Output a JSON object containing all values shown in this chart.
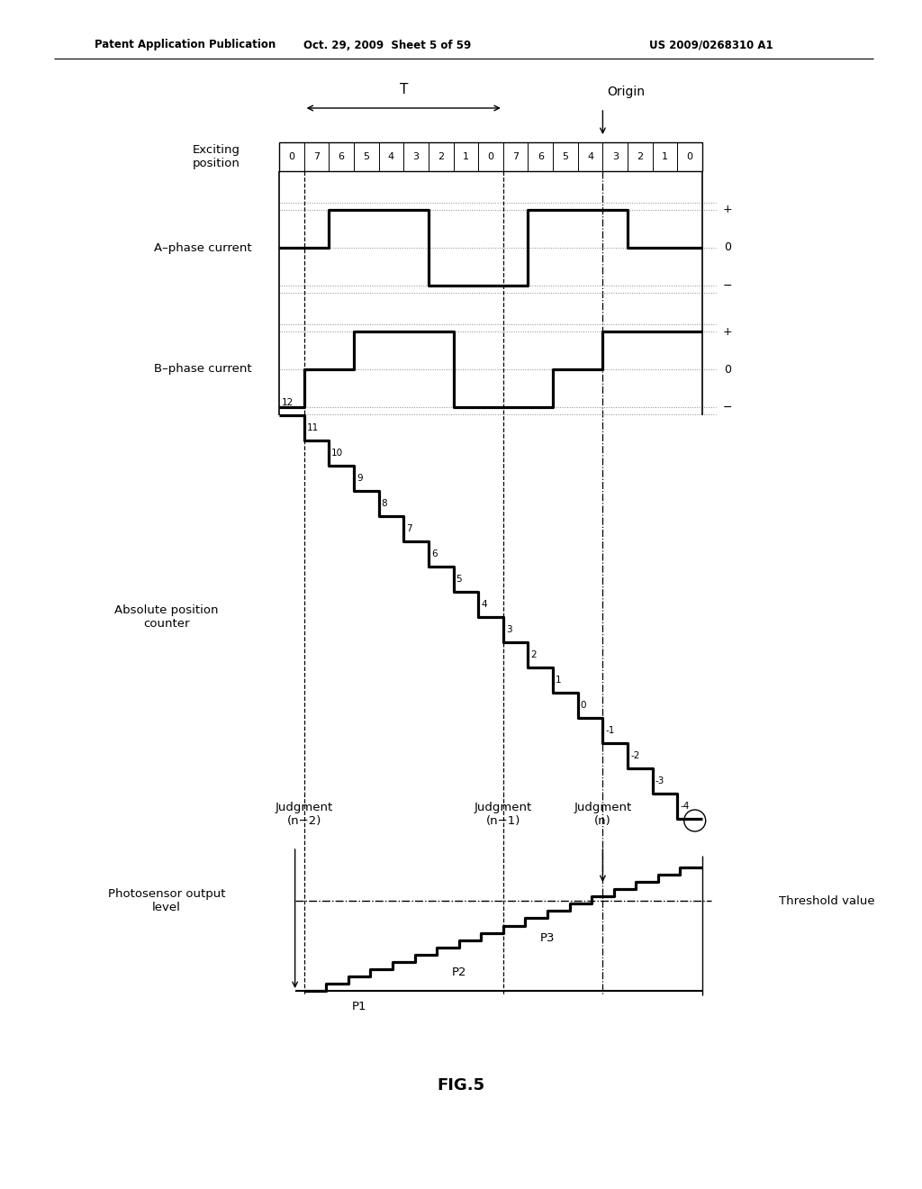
{
  "title_left": "Patent Application Publication",
  "title_mid": "Oct. 29, 2009  Sheet 5 of 59",
  "title_right": "US 2009/0268310 A1",
  "fig_label": "FIG.5",
  "bg_color": "#ffffff",
  "exciting_positions": [
    "0",
    "7",
    "6",
    "5",
    "4",
    "3",
    "2",
    "1",
    "0",
    "7",
    "6",
    "5",
    "4",
    "3",
    "2",
    "1",
    "0"
  ],
  "abs_counter_labels": [
    "12",
    "11",
    "10",
    "9",
    "8",
    "7",
    "6",
    "5",
    "4",
    "3",
    "2",
    "1",
    "0",
    "-1",
    "-2",
    "-3",
    "-4"
  ],
  "judgment_labels": [
    "Judgment\n(n−2)",
    "Judgment\n(n−1)",
    "Judgment\n(n)"
  ],
  "threshold_label": "Threshold value",
  "photosensor_label": "Photosensor output\nlevel",
  "abs_pos_label": "Absolute position\ncounter",
  "a_phase_label": "A–phase current",
  "b_phase_label": "B–phase current",
  "exciting_label": "Exciting\nposition",
  "T_label": "T",
  "origin_label": "Origin",
  "a_wave_cols": [
    0,
    2,
    2,
    6,
    6,
    10,
    10,
    14,
    14,
    17
  ],
  "a_wave_vals": [
    0,
    0,
    1,
    1,
    -1,
    -1,
    1,
    1,
    0,
    0
  ],
  "b_wave_cols": [
    0,
    1,
    1,
    3,
    3,
    5,
    5,
    7,
    7,
    9,
    9,
    11,
    11,
    13,
    13,
    15,
    15,
    17
  ],
  "b_wave_vals": [
    -1,
    -1,
    0,
    0,
    1,
    1,
    1,
    1,
    -1,
    -1,
    -1,
    -1,
    0,
    0,
    1,
    1,
    1,
    1
  ],
  "jn2_col": 1,
  "jn1_col": 9,
  "jn_col": 13,
  "num_exc_cols": 17
}
